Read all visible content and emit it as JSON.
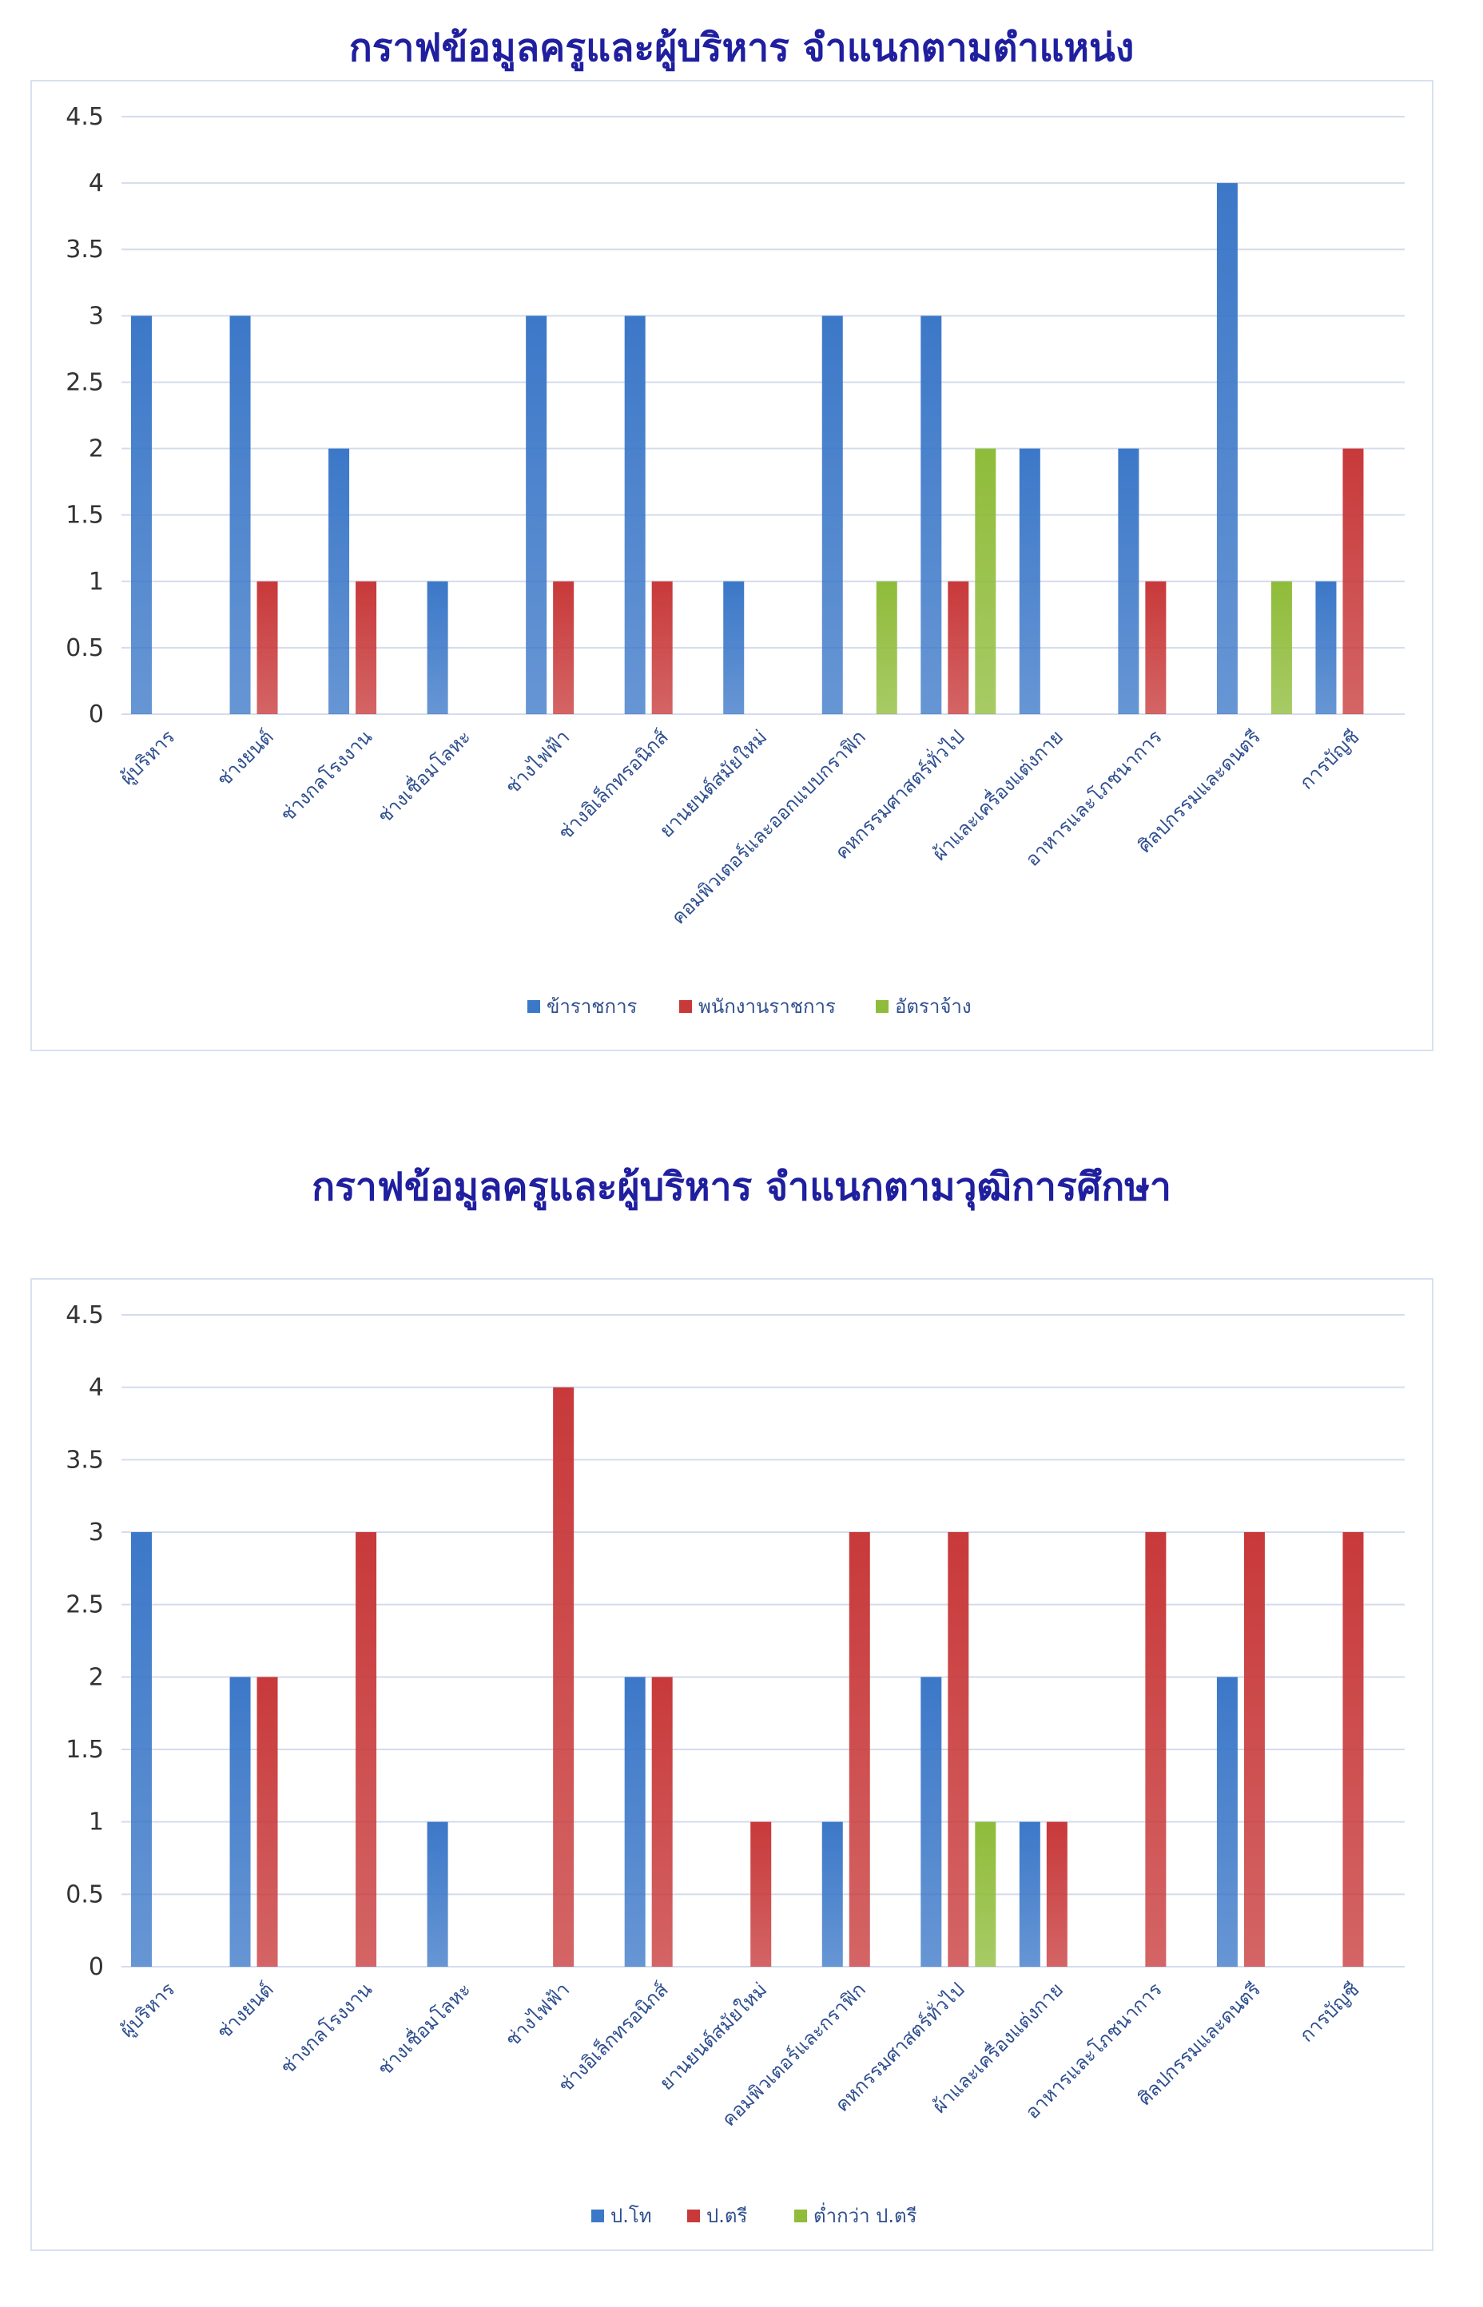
{
  "chart_data": [
    {
      "type": "bar",
      "title": "กราฟข้อมูลครูและผู้บริหาร จำแนกตามตำแหน่ง",
      "categories": [
        "ผู้บริหาร",
        "ช่างยนต์",
        "ช่างกลโรงงาน",
        "ช่างเชื่อมโลหะ",
        "ช่างไฟฟ้า",
        "ช่างอิเล็กทรอนิกส์",
        "ยานยนต์สมัยใหม่",
        "คอมพิวเตอร์และออกแบบกราฟิก",
        "คหกรรมศาสตร์ทั่วไป",
        "ผ้าและเครื่องแต่งกาย",
        "อาหารและโภชนาการ",
        "ศิลปกรรมและดนตรี",
        "การบัญชี"
      ],
      "series": [
        {
          "name": "ข้าราชการ",
          "color": "#3c78c8",
          "values": [
            3,
            3,
            2,
            1,
            3,
            3,
            1,
            3,
            3,
            2,
            2,
            4,
            1
          ]
        },
        {
          "name": "พนักงานราชการ",
          "color": "#c8393a",
          "values": [
            0,
            1,
            1,
            0,
            1,
            1,
            0,
            0,
            1,
            0,
            1,
            0,
            2
          ]
        },
        {
          "name": "อัตราจ้าง",
          "color": "#8fbc3a",
          "values": [
            0,
            0,
            0,
            0,
            0,
            0,
            0,
            1,
            2,
            0,
            0,
            1,
            0
          ]
        }
      ],
      "ylim": [
        0,
        4.5
      ],
      "yticks": [
        "0",
        "0.5",
        "1",
        "1.5",
        "2",
        "2.5",
        "3",
        "3.5",
        "4",
        "4.5"
      ],
      "grid": true,
      "legend": "bottom"
    },
    {
      "type": "bar",
      "title": "กราฟข้อมูลครูและผู้บริหาร จำแนกตามวุฒิการศึกษา",
      "categories": [
        "ผู้บริหาร",
        "ช่างยนต์",
        "ช่างกลโรงงาน",
        "ช่างเชื่อมโลหะ",
        "ช่างไฟฟ้า",
        "ช่างอิเล็กทรอนิกส์",
        "ยานยนต์สมัยใหม่",
        "คอมพิวเตอร์และกราฟิก",
        "คหกรรมศาสตร์ทั่วไป",
        "ผ้าและเครื่องแต่งกาย",
        "อาหารและโภชนาการ",
        "ศิลปกรรมและดนตรี",
        "การบัญชี"
      ],
      "series": [
        {
          "name": "ป.โท",
          "color": "#3c78c8",
          "values": [
            3,
            2,
            0,
            1,
            0,
            2,
            0,
            1,
            2,
            1,
            0,
            2,
            0
          ]
        },
        {
          "name": "ป.ตรี",
          "color": "#c8393a",
          "values": [
            0,
            2,
            3,
            0,
            4,
            2,
            1,
            3,
            3,
            1,
            3,
            3,
            3
          ]
        },
        {
          "name": "ต่ำกว่า ป.ตรี",
          "color": "#8fbc3a",
          "values": [
            0,
            0,
            0,
            0,
            0,
            0,
            0,
            0,
            1,
            0,
            0,
            0,
            0
          ]
        }
      ],
      "ylim": [
        0,
        4.5
      ],
      "yticks": [
        "0",
        "0.5",
        "1",
        "1.5",
        "2",
        "2.5",
        "3",
        "3.5",
        "4",
        "4.5"
      ],
      "grid": true,
      "legend": "bottom"
    }
  ]
}
